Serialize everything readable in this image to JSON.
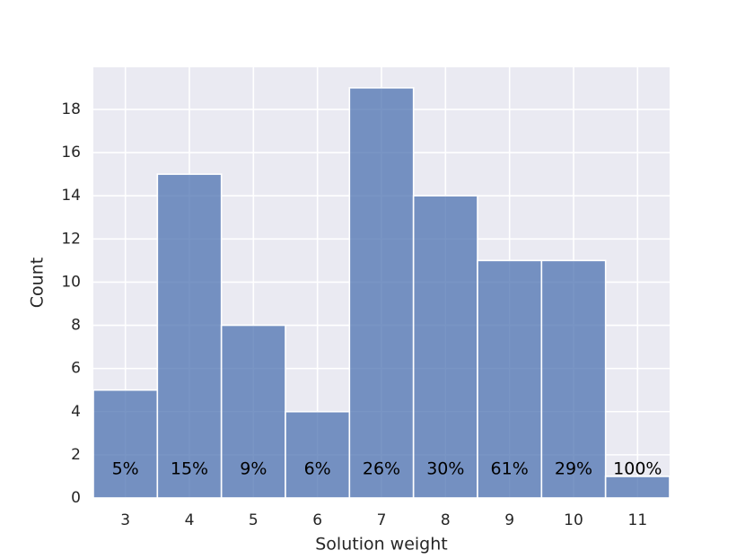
{
  "chart_data": {
    "type": "histogram",
    "xlabel": "Solution weight",
    "ylabel": "Count",
    "bins": [
      2.5,
      3.5,
      4.5,
      5.5,
      6.5,
      7.5,
      8.5,
      9.5,
      10.5,
      11.5
    ],
    "counts": [
      5,
      15,
      8,
      4,
      19,
      14,
      11,
      11,
      1
    ],
    "annotations": [
      "5%",
      "15%",
      "9%",
      "6%",
      "26%",
      "30%",
      "61%",
      "29%",
      "100%"
    ],
    "color": "#4c72b0",
    "xlim": [
      2.5,
      11.5
    ],
    "xticks": [
      3,
      4,
      5,
      6,
      7,
      8,
      9,
      10,
      11
    ],
    "ylim": [
      0,
      19.95
    ],
    "yticks": [
      0,
      2,
      4,
      6,
      8,
      10,
      12,
      14,
      16,
      18
    ],
    "grid": true
  }
}
